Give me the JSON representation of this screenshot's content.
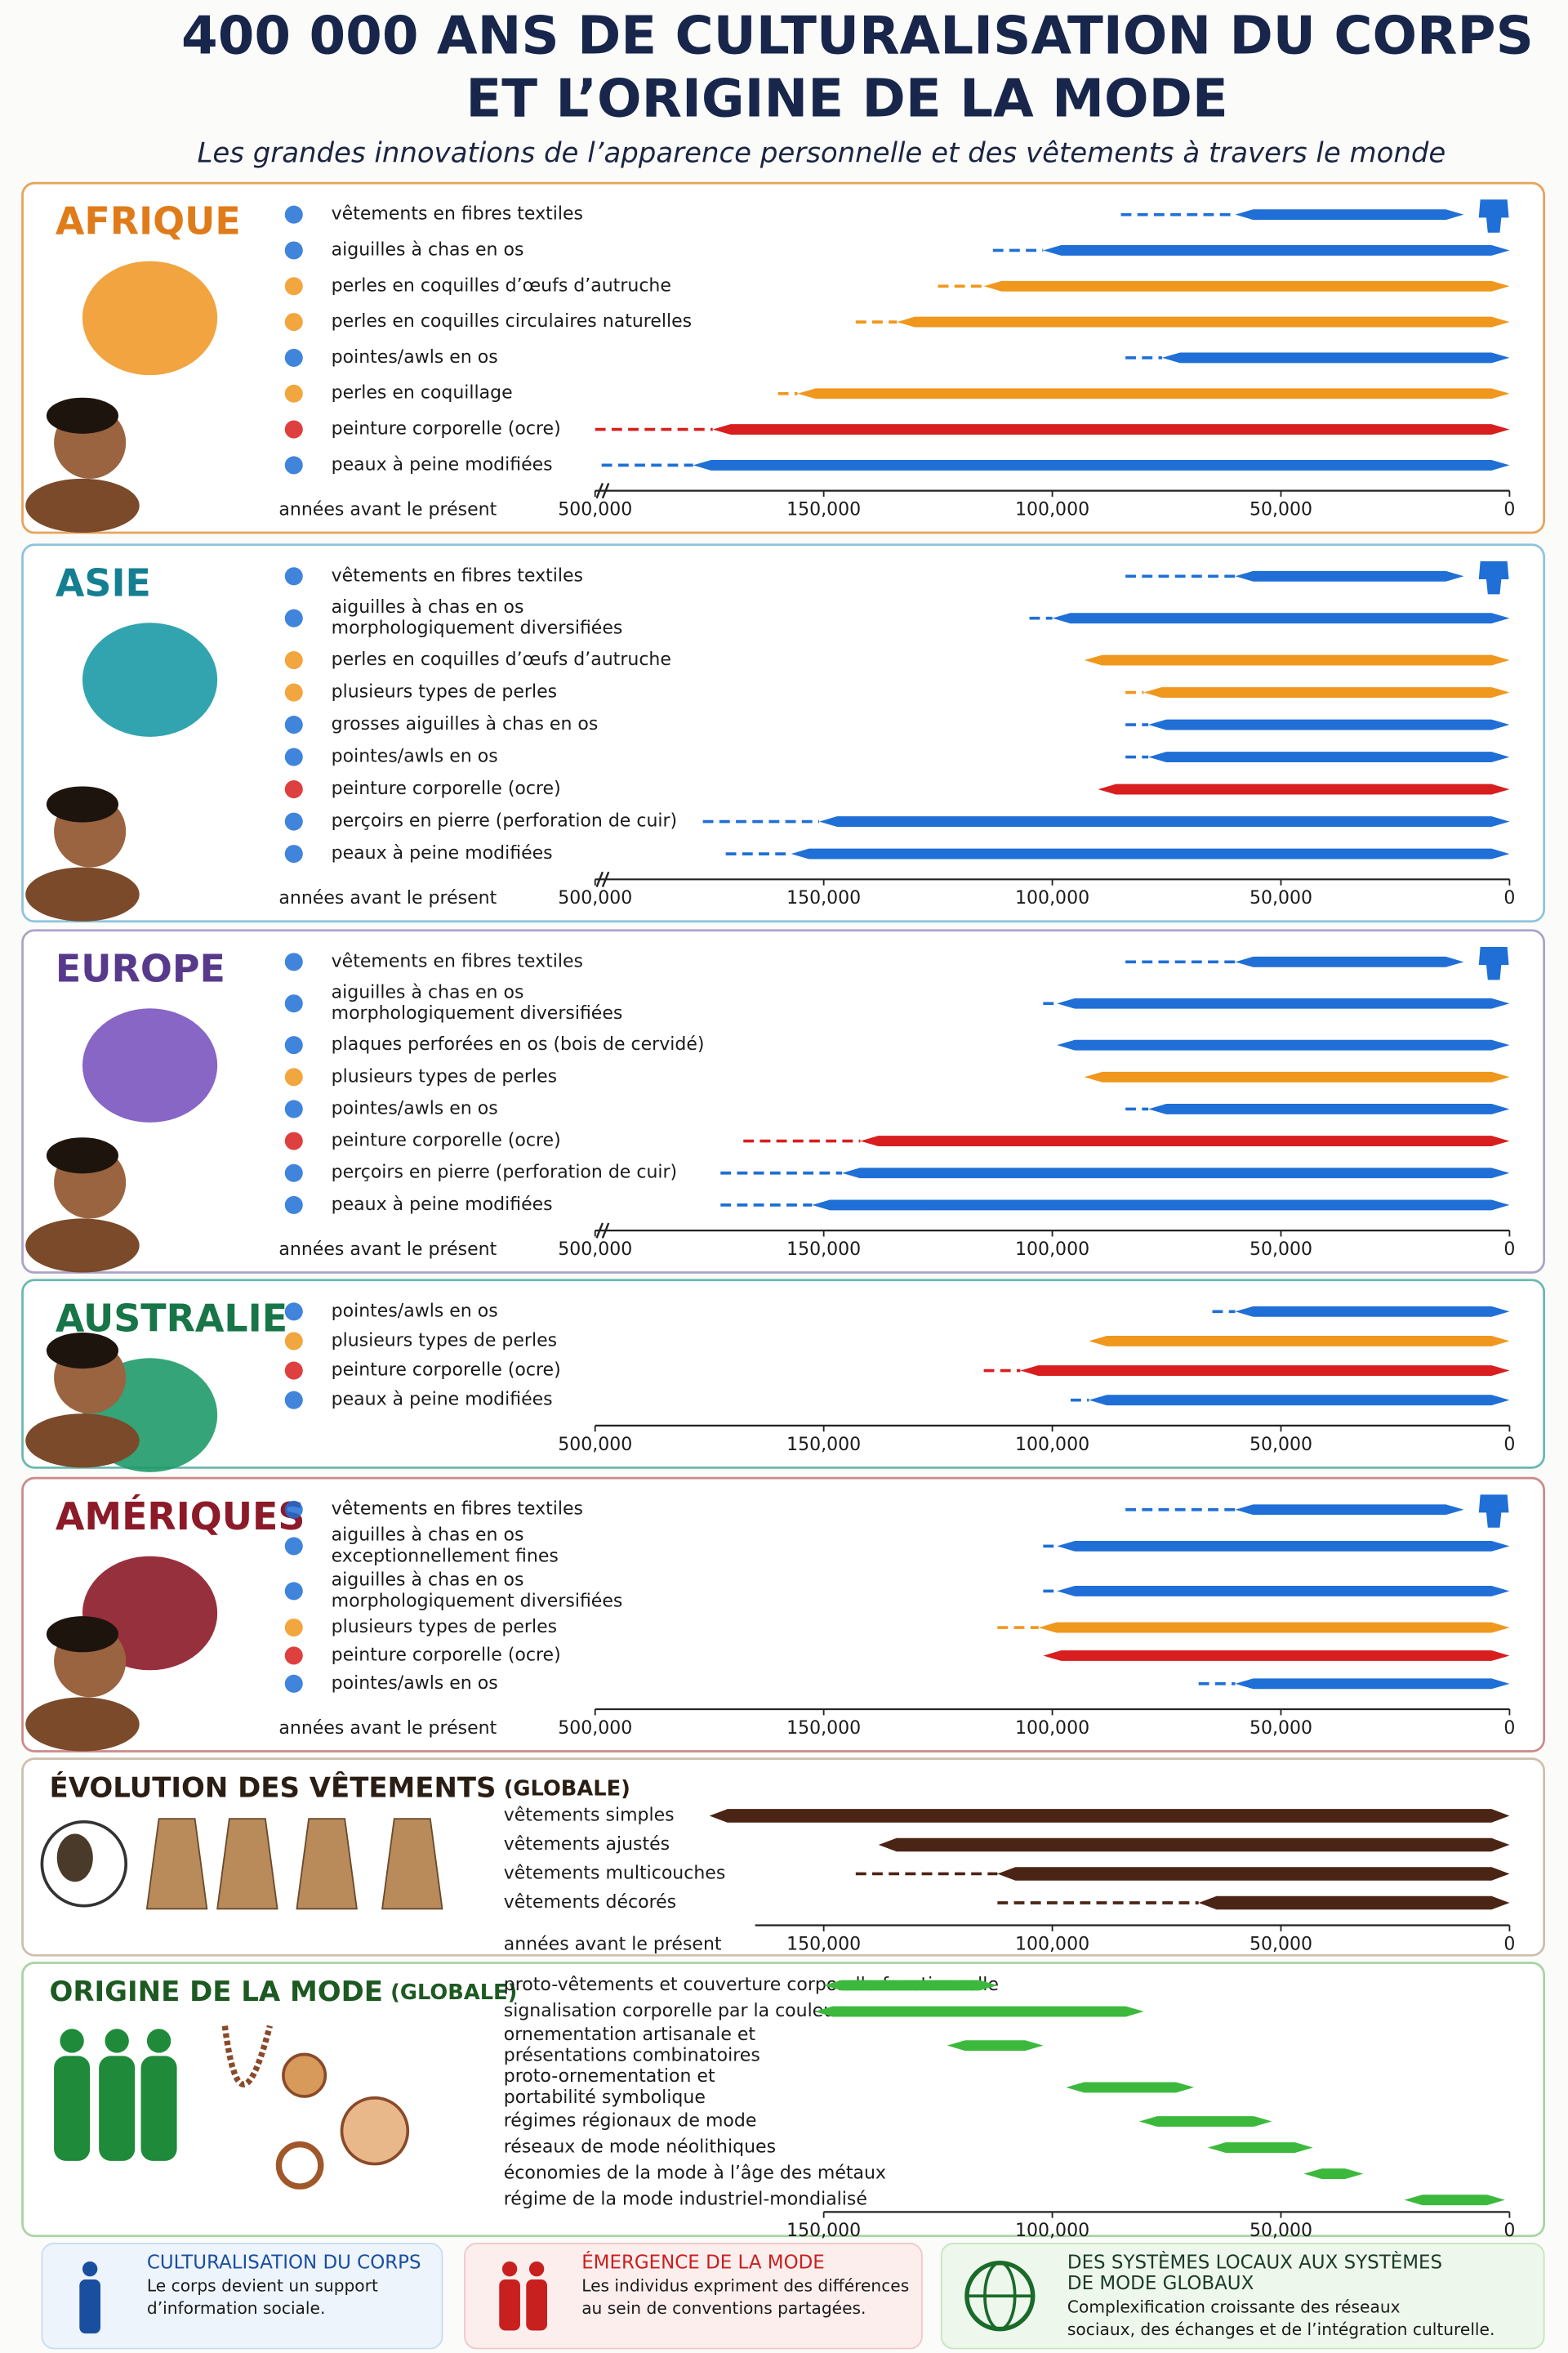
{
  "title_lines": [
    "400 000 ANS DE CULTURALISATION DU CORPS",
    "ET L’ORIGINE DE LA MODE"
  ],
  "subtitle": "Les grandes innovations de l’apparence personnelle et des vêtements à travers le monde",
  "chart_data": [
    {
      "type": "timeline",
      "title": "AFRIQUE",
      "axis_label": "années avant le présent",
      "axis_break": true,
      "xlim": [
        500000,
        0
      ],
      "xticks": [
        {
          "value": 500000,
          "label": "500,000"
        },
        {
          "value": 150000,
          "label": "150,000"
        },
        {
          "value": 100000,
          "label": "100,000"
        },
        {
          "value": 50000,
          "label": "50,000"
        },
        0
      ],
      "items": [
        {
          "label": "vêtements en fibres textiles",
          "color": "#1f6fd6",
          "dashed_from": 85000,
          "start": 60000,
          "end": 10000,
          "end_icon": "garment"
        },
        {
          "label": "aiguilles à chas en os",
          "color": "#1f6fd6",
          "dashed_from": 113000,
          "start": 102000,
          "end": 0
        },
        {
          "label": "perles en coquilles d’œufs d’autruche",
          "color": "#f0971e",
          "dashed_from": 125000,
          "start": 115000,
          "end": 0
        },
        {
          "label": "perles en coquilles circulaires naturelles",
          "color": "#f0971e",
          "dashed_from": 143000,
          "start": 134000,
          "end": 0
        },
        {
          "label": "pointes/awls en os",
          "color": "#1f6fd6",
          "dashed_from": 84000,
          "start": 76000,
          "end": 0
        },
        {
          "label": "perles en coquillage",
          "color": "#f0971e",
          "dashed_from": 220000,
          "start": 190000,
          "end": 0
        },
        {
          "label": "peinture corporelle (ocre)",
          "color": "#d81e1e",
          "dashed_from": 500000,
          "start": 320000,
          "end": 0
        },
        {
          "label": "peaux à peine modifiées",
          "color": "#1f6fd6",
          "dashed_from": 490000,
          "start": 350000,
          "end": 0
        }
      ]
    },
    {
      "type": "timeline",
      "title": "ASIE",
      "axis_label": "années avant le présent",
      "axis_break": true,
      "xlim": [
        500000,
        0
      ],
      "xticks": [
        {
          "value": 500000,
          "label": "500,000"
        },
        {
          "value": 150000,
          "label": "150,000"
        },
        {
          "value": 100000,
          "label": "100,000"
        },
        {
          "value": 50000,
          "label": "50,000"
        },
        0
      ],
      "items": [
        {
          "label": "vêtements en fibres textiles",
          "color": "#1f6fd6",
          "dashed_from": 84000,
          "start": 60000,
          "end": 10000,
          "end_icon": "garment"
        },
        {
          "label": [
            "aiguilles à chas en os",
            "morphologiquement diversifiées"
          ],
          "color": "#1f6fd6",
          "dashed_from": 105000,
          "start": 100000,
          "end": 0
        },
        {
          "label": "perles en coquilles d’œufs d’autruche",
          "color": "#f0971e",
          "start": 93000,
          "end": 0
        },
        {
          "label": "plusieurs types de perles",
          "color": "#f0971e",
          "dashed_from": 84000,
          "start": 80000,
          "end": 0
        },
        {
          "label": "grosses aiguilles à chas en os",
          "color": "#1f6fd6",
          "dashed_from": 84000,
          "start": 79000,
          "end": 0
        },
        {
          "label": "pointes/awls en os",
          "color": "#1f6fd6",
          "dashed_from": 84000,
          "start": 79000,
          "end": 0
        },
        {
          "label": "peinture corporelle (ocre)",
          "color": "#d81e1e",
          "start": 90000,
          "end": 0
        },
        {
          "label": "perçoirs en pierre (perforation de cuir)",
          "color": "#1f6fd6",
          "dashed_from": 335000,
          "start": 157000,
          "end": 0
        },
        {
          "label": "peaux à peine modifiées",
          "color": "#1f6fd6",
          "dashed_from": 300000,
          "start": 200000,
          "end": 0
        }
      ]
    },
    {
      "type": "timeline",
      "title": "EUROPE",
      "axis_label": "années avant le présent",
      "axis_break": true,
      "xlim": [
        500000,
        0
      ],
      "xticks": [
        {
          "value": 500000,
          "label": "500,000"
        },
        {
          "value": 150000,
          "label": "150,000"
        },
        {
          "value": 100000,
          "label": "100,000"
        },
        {
          "value": 50000,
          "label": "50,000"
        },
        0
      ],
      "items": [
        {
          "label": "vêtements en fibres textiles",
          "color": "#1f6fd6",
          "dashed_from": 84000,
          "start": 60000,
          "end": 10000,
          "end_icon": "garment"
        },
        {
          "label": [
            "aiguilles à chas en os",
            "morphologiquement diversifiées"
          ],
          "color": "#1f6fd6",
          "dashed_from": 102000,
          "start": 99000,
          "end": 0
        },
        {
          "label": "plaques perforées en os (bois de cervidé)",
          "color": "#1f6fd6",
          "start": 99000,
          "end": 0
        },
        {
          "label": "plusieurs types de perles",
          "color": "#f0971e",
          "start": 93000,
          "end": 0
        },
        {
          "label": "pointes/awls en os",
          "color": "#1f6fd6",
          "dashed_from": 84000,
          "start": 79000,
          "end": 0
        },
        {
          "label": "peinture corporelle (ocre)",
          "color": "#d81e1e",
          "dashed_from": 273000,
          "start": 142000,
          "end": 0
        },
        {
          "label": "perçoirs en pierre (perforation de cuir)",
          "color": "#1f6fd6",
          "dashed_from": 308000,
          "start": 146000,
          "end": 0
        },
        {
          "label": "peaux à peine modifiées",
          "color": "#1f6fd6",
          "dashed_from": 308000,
          "start": 168000,
          "end": 0
        }
      ]
    },
    {
      "type": "timeline",
      "title": "AUSTRALIE",
      "xlim": [
        500000,
        0
      ],
      "xticks": [
        {
          "value": 500000,
          "label": "500,000"
        },
        {
          "value": 150000,
          "label": "150,000"
        },
        {
          "value": 100000,
          "label": "100,000"
        },
        {
          "value": 50000,
          "label": "50,000"
        },
        0
      ],
      "items": [
        {
          "label": "pointes/awls en os",
          "color": "#1f6fd6",
          "dashed_from": 65000,
          "start": 60000,
          "end": 0
        },
        {
          "label": "plusieurs types de perles",
          "color": "#f0971e",
          "start": 92000,
          "end": 0
        },
        {
          "label": "peinture corporelle (ocre)",
          "color": "#d81e1e",
          "dashed_from": 115000,
          "start": 107000,
          "end": 0
        },
        {
          "label": "peaux à peine modifiées",
          "color": "#1f6fd6",
          "dashed_from": 96000,
          "start": 92000,
          "end": 0
        }
      ]
    },
    {
      "type": "timeline",
      "title": "AMÉRIQUES",
      "axis_label": "années avant le présent",
      "xlim": [
        500000,
        0
      ],
      "xticks": [
        {
          "value": 500000,
          "label": "500,000"
        },
        {
          "value": 150000,
          "label": "150,000"
        },
        {
          "value": 100000,
          "label": "100,000"
        },
        {
          "value": 50000,
          "label": "50,000"
        },
        0
      ],
      "items": [
        {
          "label": "vêtements en fibres textiles",
          "color": "#1f6fd6",
          "dashed_from": 84000,
          "start": 60000,
          "end": 10000,
          "end_icon": "garment"
        },
        {
          "label": [
            "aiguilles à chas en os",
            "exceptionnellement fines"
          ],
          "color": "#1f6fd6",
          "dashed_from": 102000,
          "start": 99000,
          "end": 0
        },
        {
          "label": [
            "aiguilles à chas en os",
            "morphologiquement diversifiées"
          ],
          "color": "#1f6fd6",
          "dashed_from": 102000,
          "start": 99000,
          "end": 0
        },
        {
          "label": "plusieurs types de perles",
          "color": "#f0971e",
          "dashed_from": 112000,
          "start": 103000,
          "end": 0
        },
        {
          "label": "peinture corporelle (ocre)",
          "color": "#d81e1e",
          "start": 102000,
          "end": 0
        },
        {
          "label": "pointes/awls en os",
          "color": "#1f6fd6",
          "dashed_from": 68000,
          "start": 60000,
          "end": 0
        }
      ]
    },
    {
      "type": "timeline",
      "title": "ÉVOLUTION DES VÊTEMENTS",
      "title_note": "(GLOBALE)",
      "axis_label": "années avant le présent",
      "xlim": [
        165000,
        0
      ],
      "xticks": [
        {
          "value": 150000,
          "label": "150,000"
        },
        {
          "value": 100000,
          "label": "100,000"
        },
        {
          "value": 50000,
          "label": "50,000"
        },
        0
      ],
      "items": [
        {
          "label": "vêtements simples",
          "color": "#4a2414",
          "start": 175000,
          "end": 0
        },
        {
          "label": "vêtements ajustés",
          "color": "#4a2414",
          "start": 138000,
          "end": 0
        },
        {
          "label": "vêtements multicouches",
          "color": "#4a2414",
          "dashed_from": 143000,
          "start": 112000,
          "end": 0
        },
        {
          "label": "vêtements décorés",
          "color": "#4a2414",
          "dashed_from": 112000,
          "start": 68000,
          "end": 0
        }
      ]
    },
    {
      "type": "timeline",
      "title": "ORIGINE DE LA MODE",
      "title_note": "(GLOBALE)",
      "xlim": [
        150000,
        0
      ],
      "xticks": [
        {
          "value": 150000,
          "label": "150,000"
        },
        {
          "value": 100000,
          "label": "100,000"
        },
        {
          "value": 50000,
          "label": "50,000"
        },
        0
      ],
      "items": [
        {
          "label": "proto-vêtements et couverture corporelle fonctionnelle",
          "color": "#3cb93c",
          "start": 150000,
          "end": 112000
        },
        {
          "label": "signalisation corporelle par la couleur",
          "color": "#3cb93c",
          "start": 152000,
          "end": 80000
        },
        {
          "label": [
            "ornementation artisanale et",
            "présentations combinatoires"
          ],
          "color": "#3cb93c",
          "start": 123000,
          "end": 102000
        },
        {
          "label": [
            "proto-ornementation et",
            "portabilité symbolique"
          ],
          "color": "#3cb93c",
          "start": 97000,
          "end": 69000
        },
        {
          "label": "régimes régionaux de mode",
          "color": "#3cb93c",
          "start": 81000,
          "end": 52000
        },
        {
          "label": "réseaux de mode néolithiques",
          "color": "#3cb93c",
          "start": 66000,
          "end": 43000
        },
        {
          "label": "économies de la mode à l’âge des métaux",
          "color": "#3cb93c",
          "start": 45000,
          "end": 32000
        },
        {
          "label": "régime de la mode industriel-mondialisé",
          "color": "#3cb93c",
          "start": 23000,
          "end": 1000
        }
      ]
    }
  ],
  "footer": [
    {
      "title": [
        "CULTURALISATION DU CORPS"
      ],
      "text": [
        "Le corps devient un support",
        "d’information sociale."
      ]
    },
    {
      "title": [
        "ÉMERGENCE DE LA MODE"
      ],
      "text": [
        "Les individus expriment des différences",
        "au sein de conventions partagées."
      ]
    },
    {
      "title": [
        "DES SYSTÈMES LOCAUX AUX SYSTÈMES",
        "DE MODE GLOBAUX"
      ],
      "text": [
        "Complexification croissante des réseaux",
        "sociaux, des échanges et de l’intégration culturelle."
      ]
    }
  ]
}
